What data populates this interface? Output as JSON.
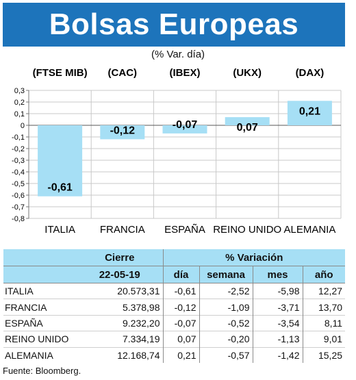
{
  "title": "Bolsas Europeas",
  "subtitle": "(% Var. día)",
  "source": "Fuente: Bloomberg.",
  "colors": {
    "title_bg": "#1d74bb",
    "bar": "#a6dff5",
    "header_bg": "#a6dff5"
  },
  "chart_data": {
    "type": "bar",
    "categories": [
      "ITALIA",
      "FRANCIA",
      "ESPAÑA",
      "REINO UNIDO",
      "ALEMANIA"
    ],
    "index_labels": [
      "(FTSE MIB)",
      "(CAC)",
      "(IBEX)",
      "(UKX)",
      "(DAX)"
    ],
    "values": [
      -0.61,
      -0.12,
      -0.07,
      0.07,
      0.21
    ],
    "value_labels": [
      "-0,61",
      "-0,12",
      "-0,07",
      "0,07",
      "0,21"
    ],
    "ylim": [
      -0.8,
      0.3
    ],
    "yticks": [
      0.3,
      0.2,
      0.1,
      0,
      -0.1,
      -0.2,
      -0.3,
      -0.4,
      -0.5,
      -0.6,
      -0.7,
      -0.8
    ],
    "ytick_labels": [
      "0,3",
      "0,2",
      "0,1",
      "0",
      "-0,1",
      "-0,2",
      "-0,3",
      "-0,4",
      "-0,5",
      "-0,6",
      "-0,7",
      "-0,8"
    ],
    "grid": true
  },
  "table": {
    "header_cierre": "Cierre",
    "header_date": "22-05-19",
    "header_variacion": "% Variación",
    "header_dia": "día",
    "header_semana": "semana",
    "header_mes": "mes",
    "header_ano": "año",
    "rows": [
      {
        "name": "ITALIA",
        "cierre": "20.573,31",
        "dia": "-0,61",
        "semana": "-2,52",
        "mes": "-5,98",
        "ano": "12,27"
      },
      {
        "name": "FRANCIA",
        "cierre": "5.378,98",
        "dia": "-0,12",
        "semana": "-1,09",
        "mes": "-3,71",
        "ano": "13,70"
      },
      {
        "name": "ESPAÑA",
        "cierre": "9.232,20",
        "dia": "-0,07",
        "semana": "-0,52",
        "mes": "-3,54",
        "ano": "8,11"
      },
      {
        "name": "REINO UNIDO",
        "cierre": "7.334,19",
        "dia": "0,07",
        "semana": "-0,20",
        "mes": "-1,13",
        "ano": "9,01"
      },
      {
        "name": "ALEMANIA",
        "cierre": "12.168,74",
        "dia": "0,21",
        "semana": "-0,57",
        "mes": "-1,42",
        "ano": "15,25"
      }
    ]
  }
}
